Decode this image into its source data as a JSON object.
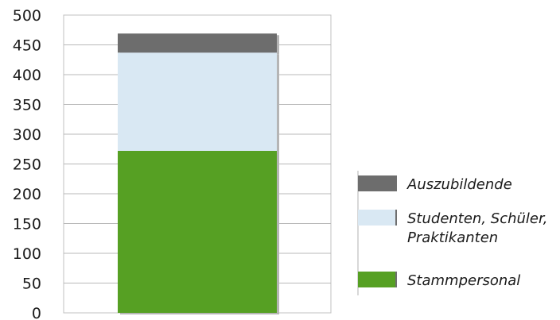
{
  "chart_data": {
    "type": "bar",
    "stacked": true,
    "categories": [
      ""
    ],
    "series": [
      {
        "name": "Stammpersonal",
        "values": [
          272
        ],
        "color": "#56a023"
      },
      {
        "name": "Studenten, Schüler, Praktikanten",
        "values": [
          165
        ],
        "color": "#d9e8f3"
      },
      {
        "name": "Auszubildende",
        "values": [
          32
        ],
        "color": "#6d6d6d"
      }
    ],
    "ylim": [
      0,
      500
    ],
    "yticks": [
      "0",
      "50",
      "100",
      "150",
      "200",
      "250",
      "300",
      "350",
      "400",
      "450",
      "500"
    ],
    "grid": true,
    "legend": {
      "placement": "right",
      "entries": [
        {
          "lines": [
            "Auszubildende"
          ],
          "color": "#6d6d6d"
        },
        {
          "lines": [
            "Studenten, Schüler,",
            "Praktikanten"
          ],
          "color": "#d9e8f3"
        },
        {
          "lines": [
            "Stammpersonal"
          ],
          "color": "#56a023"
        }
      ]
    }
  }
}
